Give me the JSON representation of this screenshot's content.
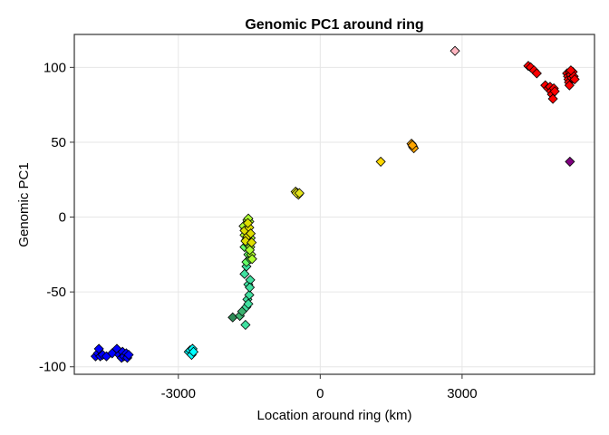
{
  "chart_data": {
    "type": "scatter",
    "title": "Genomic PC1 around ring",
    "xlabel": "Location around ring (km)",
    "ylabel": "Genomic PC1",
    "xlim": [
      -5200,
      5800
    ],
    "ylim": [
      -105,
      122
    ],
    "x_ticks": [
      -3000,
      0,
      3000
    ],
    "x_tick_labels": [
      "-3000",
      "0",
      "3000"
    ],
    "y_ticks": [
      -100,
      -50,
      0,
      50,
      100
    ],
    "y_tick_labels": [
      "-100",
      "-50",
      "0",
      "50",
      "100"
    ],
    "grid": true,
    "legend": "none",
    "marker": "diamond",
    "groups": [
      {
        "color": "#0000ff",
        "points": [
          [
            -4750,
            -93
          ],
          [
            -4700,
            -91
          ],
          [
            -4680,
            -88
          ],
          [
            -4650,
            -93
          ],
          [
            -4600,
            -92
          ],
          [
            -4520,
            -93
          ],
          [
            -4400,
            -91
          ],
          [
            -4300,
            -88
          ],
          [
            -4250,
            -92
          ],
          [
            -4200,
            -94
          ],
          [
            -4180,
            -90
          ],
          [
            -4150,
            -93
          ],
          [
            -4100,
            -91
          ],
          [
            -4080,
            -94
          ],
          [
            -4050,
            -92
          ]
        ]
      },
      {
        "color": "#00ffff",
        "points": [
          [
            -2780,
            -90
          ],
          [
            -2750,
            -89
          ],
          [
            -2720,
            -92
          ],
          [
            -2700,
            -88
          ],
          [
            -2680,
            -90
          ]
        ]
      },
      {
        "color": "#2e8b57",
        "points": [
          [
            -1850,
            -67
          ]
        ]
      },
      {
        "color": "#3cb371",
        "points": [
          [
            -1700,
            -66
          ],
          [
            -1650,
            -63
          ]
        ]
      },
      {
        "color": "#40e0a0",
        "points": [
          [
            -1580,
            -72
          ],
          [
            -1560,
            -60
          ],
          [
            -1540,
            -55
          ],
          [
            -1520,
            -45
          ],
          [
            -1600,
            -38
          ],
          [
            -1560,
            -33
          ],
          [
            -1500,
            -52
          ],
          [
            -1480,
            -42
          ],
          [
            -1520,
            -58
          ],
          [
            -1490,
            -47
          ]
        ]
      },
      {
        "color": "#66ff66",
        "points": [
          [
            -1560,
            -30
          ],
          [
            -1520,
            -25
          ],
          [
            -1600,
            -20
          ],
          [
            -1480,
            -28
          ],
          [
            -1540,
            -18
          ]
        ]
      },
      {
        "color": "#adff2f",
        "points": [
          [
            -1600,
            -12
          ],
          [
            -1580,
            -8
          ],
          [
            -1560,
            -5
          ],
          [
            -1540,
            -2
          ],
          [
            -1520,
            -10
          ],
          [
            -1500,
            -15
          ],
          [
            -1480,
            -20
          ],
          [
            -1460,
            -25
          ],
          [
            -1440,
            -28
          ],
          [
            -1620,
            -6
          ],
          [
            -1500,
            -3
          ],
          [
            -1470,
            -14
          ],
          [
            -1520,
            -1
          ],
          [
            -1560,
            -15
          ],
          [
            -1490,
            -22
          ]
        ]
      },
      {
        "color": "#dddd00",
        "points": [
          [
            -1600,
            -9
          ],
          [
            -1540,
            -13
          ],
          [
            -1500,
            -7
          ],
          [
            -1470,
            -11
          ],
          [
            -1530,
            -4
          ],
          [
            -1580,
            -16
          ],
          [
            -1450,
            -17
          ]
        ]
      },
      {
        "color": "#e5e51a",
        "points": [
          [
            -520,
            17
          ],
          [
            -480,
            16
          ],
          [
            -460,
            15
          ],
          [
            -500,
            16
          ],
          [
            -440,
            16
          ]
        ]
      },
      {
        "color": "#ffd700",
        "points": [
          [
            1280,
            37
          ]
        ]
      },
      {
        "color": "#ffa500",
        "points": [
          [
            1930,
            49
          ],
          [
            1960,
            47
          ],
          [
            1980,
            46
          ],
          [
            1950,
            48
          ]
        ]
      },
      {
        "color": "#ffb6c1",
        "points": [
          [
            2850,
            111
          ]
        ]
      },
      {
        "color": "#ff0000",
        "points": [
          [
            4400,
            101
          ],
          [
            4450,
            100
          ],
          [
            4520,
            98
          ],
          [
            4580,
            96
          ],
          [
            4760,
            88
          ],
          [
            4820,
            86
          ],
          [
            4860,
            87
          ],
          [
            4880,
            84
          ],
          [
            4900,
            82
          ],
          [
            4920,
            79
          ],
          [
            4940,
            86
          ],
          [
            4960,
            84
          ],
          [
            5220,
            96
          ],
          [
            5240,
            94
          ],
          [
            5250,
            92
          ],
          [
            5260,
            90
          ],
          [
            5270,
            88
          ],
          [
            5280,
            97
          ],
          [
            5300,
            95
          ],
          [
            5320,
            93
          ],
          [
            5340,
            97
          ],
          [
            5360,
            94
          ],
          [
            5380,
            92
          ],
          [
            5300,
            98
          ]
        ]
      },
      {
        "color": "#800080",
        "points": [
          [
            5280,
            37
          ]
        ]
      }
    ]
  }
}
